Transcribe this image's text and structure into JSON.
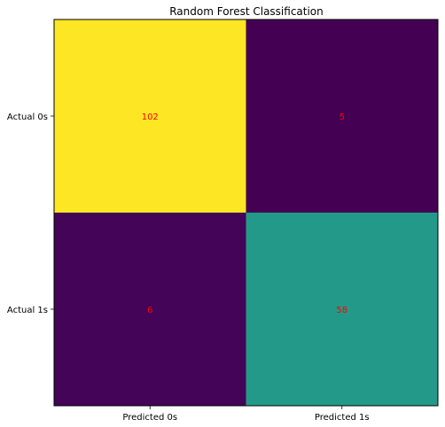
{
  "chart_data": {
    "type": "heatmap",
    "title": "Random Forest Classification",
    "xlabel": "",
    "ylabel": "",
    "x_categories": [
      "Predicted 0s",
      "Predicted 1s"
    ],
    "y_categories": [
      "Actual 0s",
      "Actual 1s"
    ],
    "values": [
      [
        102,
        5
      ],
      [
        6,
        58
      ]
    ],
    "colormap": "viridis",
    "annotation_color": "#ff0000",
    "grid": false,
    "legend": "none"
  }
}
